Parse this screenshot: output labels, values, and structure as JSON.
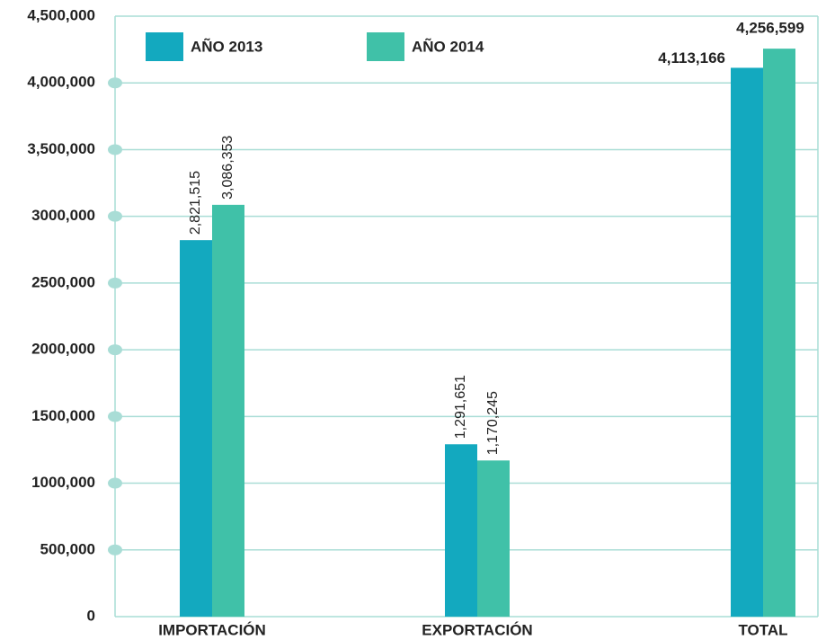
{
  "chart_data": {
    "type": "bar",
    "categories": [
      "IMPORTACIÓN",
      "EXPORTACIÓN",
      "TOTAL"
    ],
    "series": [
      {
        "name": "AÑO 2013",
        "color": "#13a9bf",
        "values": [
          2821515,
          1291651,
          4113166
        ],
        "value_labels": [
          "2,821,515",
          "1,291,651",
          "4,113,166"
        ]
      },
      {
        "name": "AÑO 2014",
        "color": "#40c1a8",
        "values": [
          3086353,
          1170245,
          4256599
        ],
        "value_labels": [
          "3,086,353",
          "1,170,245",
          "4,256,599"
        ]
      }
    ],
    "ylim": [
      0,
      4500000
    ],
    "yticks": [
      0,
      {
        "value": 500000,
        "label": "500,000"
      },
      {
        "value": 1000000,
        "label": "1000,000"
      },
      {
        "value": 1500000,
        "label": "1500,000"
      },
      {
        "value": 2000000,
        "label": "2000,000"
      },
      {
        "value": 2500000,
        "label": "2500,000"
      },
      {
        "value": 3000000,
        "label": "3000,000"
      },
      {
        "value": 3500000,
        "label": "3,500,000"
      },
      {
        "value": 4000000,
        "label": "4,000,000"
      },
      {
        "value": 4500000,
        "label": "4,500,000"
      }
    ],
    "grid": true
  }
}
